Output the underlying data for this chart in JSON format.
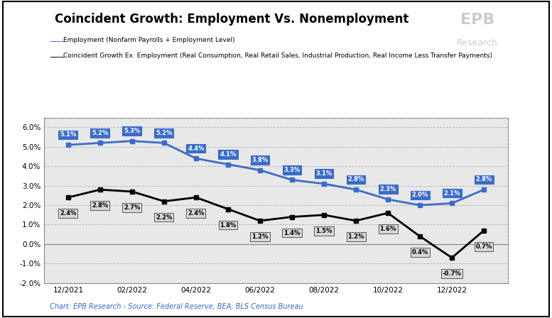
{
  "title": "Coincident Growth: Employment Vs. Nonemployment",
  "legend_blue": "Employment (Nonfarm Payrolls + Employment Level)",
  "legend_black": "Coincident Growth Ex. Employment (Real Consumption, Real Retail Sales, Industrial Production, Real Income Less Transfer Payments)",
  "x_labels": [
    "12/2021",
    "02/2022",
    "04/2022",
    "06/2022",
    "08/2022",
    "10/2022",
    "12/2022"
  ],
  "employment_y": [
    5.1,
    5.2,
    5.3,
    5.2,
    4.4,
    4.1,
    3.8,
    3.3,
    3.1,
    2.8,
    2.3,
    2.0,
    2.1,
    2.8
  ],
  "employment_labels": [
    "5.1%",
    "5.2%",
    "5.3%",
    "5.2%",
    "4.4%",
    "4.1%",
    "3.8%",
    "3.3%",
    "3.1%",
    "2.8%",
    "2.3%",
    "2.0%",
    "2.1%",
    "2.8%"
  ],
  "nonemployment_y": [
    2.4,
    2.8,
    2.7,
    2.2,
    2.4,
    1.8,
    1.2,
    1.4,
    1.5,
    1.2,
    1.6,
    0.4,
    -0.7,
    0.7
  ],
  "nonemployment_labels": [
    "2.4%",
    "2.8%",
    "2.7%",
    "2.2%",
    "2.4%",
    "1.8%",
    "1.2%",
    "1.4%",
    "1.5%",
    "1.2%",
    "1.6%",
    "0.4%",
    "-0.7%",
    "0.7%"
  ],
  "x_positions": [
    0,
    2,
    4,
    6,
    8,
    10,
    12,
    14,
    16,
    18,
    20,
    22,
    24,
    26
  ],
  "x_tick_positions": [
    0,
    4,
    8,
    12,
    16,
    20,
    24
  ],
  "ylim": [
    -2.0,
    6.5
  ],
  "yticks": [
    -2.0,
    -1.0,
    0.0,
    1.0,
    2.0,
    3.0,
    4.0,
    5.0,
    6.0
  ],
  "blue_color": "#3B6CC9",
  "black_color": "#000000",
  "fig_bg_color": "#ffffff",
  "plot_bg_color": "#e8e8e8",
  "footer": "Chart: EPB Research - Source: Federal Reserve, BEA, BLS Census Bureau",
  "watermark_line1": "EPB",
  "watermark_line2": "Research"
}
